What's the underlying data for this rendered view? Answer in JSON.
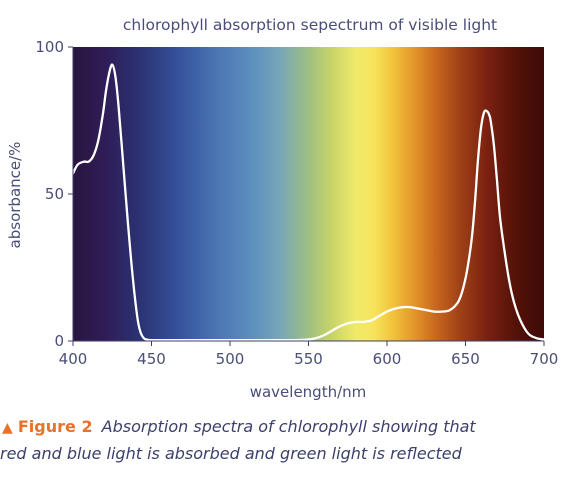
{
  "chart_data": {
    "type": "line",
    "title": "chlorophyll absorption sepectrum of visible light",
    "xlabel": "wavelength/nm",
    "ylabel": "absorbance/%",
    "xlim": [
      400,
      700
    ],
    "ylim": [
      0,
      100
    ],
    "xticks": [
      400,
      450,
      500,
      550,
      600,
      650,
      700
    ],
    "yticks": [
      0,
      50,
      100
    ],
    "grid": false,
    "background": "visible-spectrum-gradient",
    "line_color": "#ffffff",
    "series": [
      {
        "x": [
          400,
          403,
          407,
          410,
          413,
          416,
          419,
          421,
          423,
          425,
          427,
          429,
          432,
          435,
          438,
          441,
          443,
          445,
          447,
          450,
          460,
          480,
          500,
          520,
          540,
          550,
          555,
          560,
          565,
          570,
          575,
          580,
          585,
          590,
          595,
          600,
          605,
          610,
          615,
          620,
          625,
          630,
          635,
          640,
          645,
          648,
          651,
          654,
          656,
          658,
          660,
          662,
          664,
          665,
          666,
          668,
          670,
          672,
          675,
          678,
          681,
          685,
          690,
          695,
          700
        ],
        "y": [
          57,
          60,
          61,
          61,
          63,
          68,
          77,
          85,
          91,
          94,
          90,
          80,
          60,
          40,
          22,
          8,
          3,
          1,
          0.5,
          0.3,
          0.3,
          0.3,
          0.3,
          0.3,
          0.3,
          0.5,
          1,
          2,
          3.5,
          5,
          6,
          6.5,
          6.5,
          7,
          8.5,
          10,
          11,
          11.5,
          11.5,
          11,
          10.5,
          10,
          10,
          10.5,
          13,
          17,
          24,
          35,
          47,
          62,
          73,
          78,
          78,
          77,
          75,
          67,
          55,
          42,
          30,
          20,
          13,
          7,
          2.5,
          1,
          0.5
        ]
      }
    ]
  },
  "caption": {
    "label": "Figure 2",
    "text_line1": "Absorption spectra of chlorophyll showing that",
    "text_line2": "red and blue light is absorbed and green light is reflected",
    "marker_color": "#e8722b"
  }
}
